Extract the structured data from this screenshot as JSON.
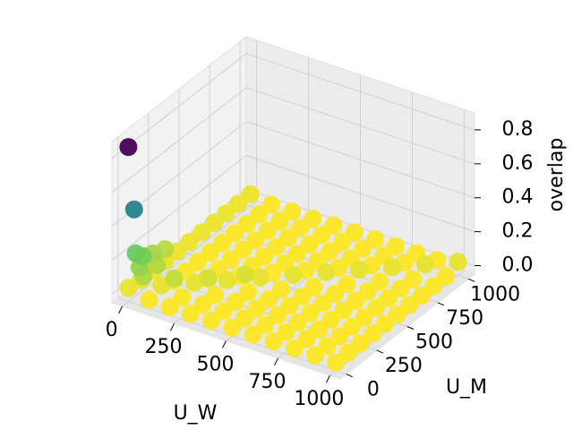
{
  "chart_data": {
    "type": "scatter3d",
    "xlabel": "U_W",
    "ylabel": "U_M",
    "zlabel": "overlap",
    "xlim": [
      -50,
      1050
    ],
    "ylim": [
      -50,
      1050
    ],
    "zlim": [
      -0.05,
      0.9
    ],
    "xticks": [
      0,
      250,
      500,
      750,
      1000
    ],
    "yticks": [
      0,
      250,
      500,
      750,
      1000
    ],
    "zticks": [
      {
        "value": 0,
        "label": "0.0"
      },
      {
        "value": 0.2,
        "label": "0.2"
      },
      {
        "value": 0.4,
        "label": "0.4"
      },
      {
        "value": 0.6,
        "label": "0.6"
      },
      {
        "value": 0.8,
        "label": "0.8"
      }
    ],
    "colormap": "viridis_r",
    "grid": true,
    "x": [
      0,
      100,
      200,
      300,
      400,
      500,
      600,
      700,
      800,
      900,
      1000,
      0,
      100,
      200,
      300,
      400,
      500,
      600,
      700,
      800,
      900,
      1000,
      0,
      100,
      200,
      300,
      400,
      500,
      600,
      700,
      800,
      900,
      1000,
      0,
      100,
      200,
      300,
      400,
      500,
      600,
      700,
      800,
      900,
      1000,
      0,
      100,
      200,
      300,
      400,
      500,
      600,
      700,
      800,
      900,
      1000,
      0,
      100,
      200,
      300,
      400,
      500,
      600,
      700,
      800,
      900,
      1000,
      0,
      100,
      200,
      300,
      400,
      500,
      600,
      700,
      800,
      900,
      1000,
      0,
      100,
      200,
      300,
      400,
      500,
      600,
      700,
      800,
      900,
      1000,
      0,
      100,
      200,
      300,
      400,
      500,
      600,
      700,
      800,
      900,
      1000,
      0,
      100,
      200,
      300,
      400,
      500,
      600,
      700,
      800,
      900,
      1000,
      0,
      100,
      200,
      300,
      400,
      500,
      600,
      700,
      800,
      900,
      1000,
      350,
      250,
      150,
      0,
      50,
      0,
      60,
      0,
      30,
      20,
      0,
      10,
      0
    ],
    "y": [
      1000,
      1000,
      1000,
      1000,
      1000,
      1000,
      1000,
      1000,
      1000,
      1000,
      1000,
      900,
      900,
      900,
      900,
      900,
      900,
      900,
      900,
      900,
      900,
      900,
      800,
      800,
      800,
      800,
      800,
      800,
      800,
      800,
      800,
      800,
      800,
      700,
      700,
      700,
      700,
      700,
      700,
      700,
      700,
      700,
      700,
      700,
      600,
      600,
      600,
      600,
      600,
      600,
      600,
      600,
      600,
      600,
      600,
      500,
      500,
      500,
      500,
      500,
      500,
      500,
      500,
      500,
      500,
      500,
      400,
      400,
      400,
      400,
      400,
      400,
      400,
      400,
      400,
      400,
      400,
      300,
      300,
      300,
      300,
      300,
      300,
      300,
      300,
      300,
      300,
      300,
      200,
      200,
      200,
      200,
      200,
      200,
      200,
      200,
      200,
      200,
      200,
      100,
      100,
      100,
      100,
      100,
      100,
      100,
      100,
      100,
      100,
      100,
      0,
      0,
      0,
      0,
      0,
      0,
      0,
      0,
      0,
      0,
      0,
      360,
      230,
      120,
      300,
      150,
      200,
      20,
      120,
      40,
      80,
      60,
      30,
      0
    ],
    "z": [
      0.02,
      0,
      0,
      0,
      0,
      0,
      0,
      0,
      0,
      0,
      0.03,
      0.02,
      0,
      0,
      0,
      0,
      0,
      0,
      0,
      0,
      0.03,
      0,
      0.02,
      0,
      0,
      0,
      0,
      0,
      0,
      0,
      0.03,
      0,
      0,
      0.02,
      0,
      0,
      0,
      0,
      0,
      0,
      0.03,
      0,
      0,
      0,
      0.02,
      0,
      0,
      0,
      0,
      0,
      0.03,
      0,
      0,
      0,
      0,
      0.02,
      0,
      0,
      0,
      0,
      0.03,
      0,
      0,
      0,
      0,
      0,
      0.02,
      0,
      0,
      0,
      0.03,
      0,
      0,
      0,
      0,
      0,
      0,
      0.02,
      0,
      0,
      0.03,
      0,
      0,
      0,
      0,
      0,
      0,
      0,
      0.02,
      0,
      0.03,
      0,
      0,
      0,
      0,
      0,
      0,
      0,
      0,
      0.02,
      0.03,
      0,
      0,
      0,
      0,
      0,
      0,
      0,
      0,
      0,
      0.03,
      0,
      0,
      0,
      0,
      0,
      0,
      0,
      0,
      0,
      0,
      0.05,
      0.06,
      0.08,
      0.09,
      0.1,
      0.12,
      0.11,
      0.15,
      0.14,
      0.18,
      0.2,
      0.48,
      0.86
    ]
  }
}
